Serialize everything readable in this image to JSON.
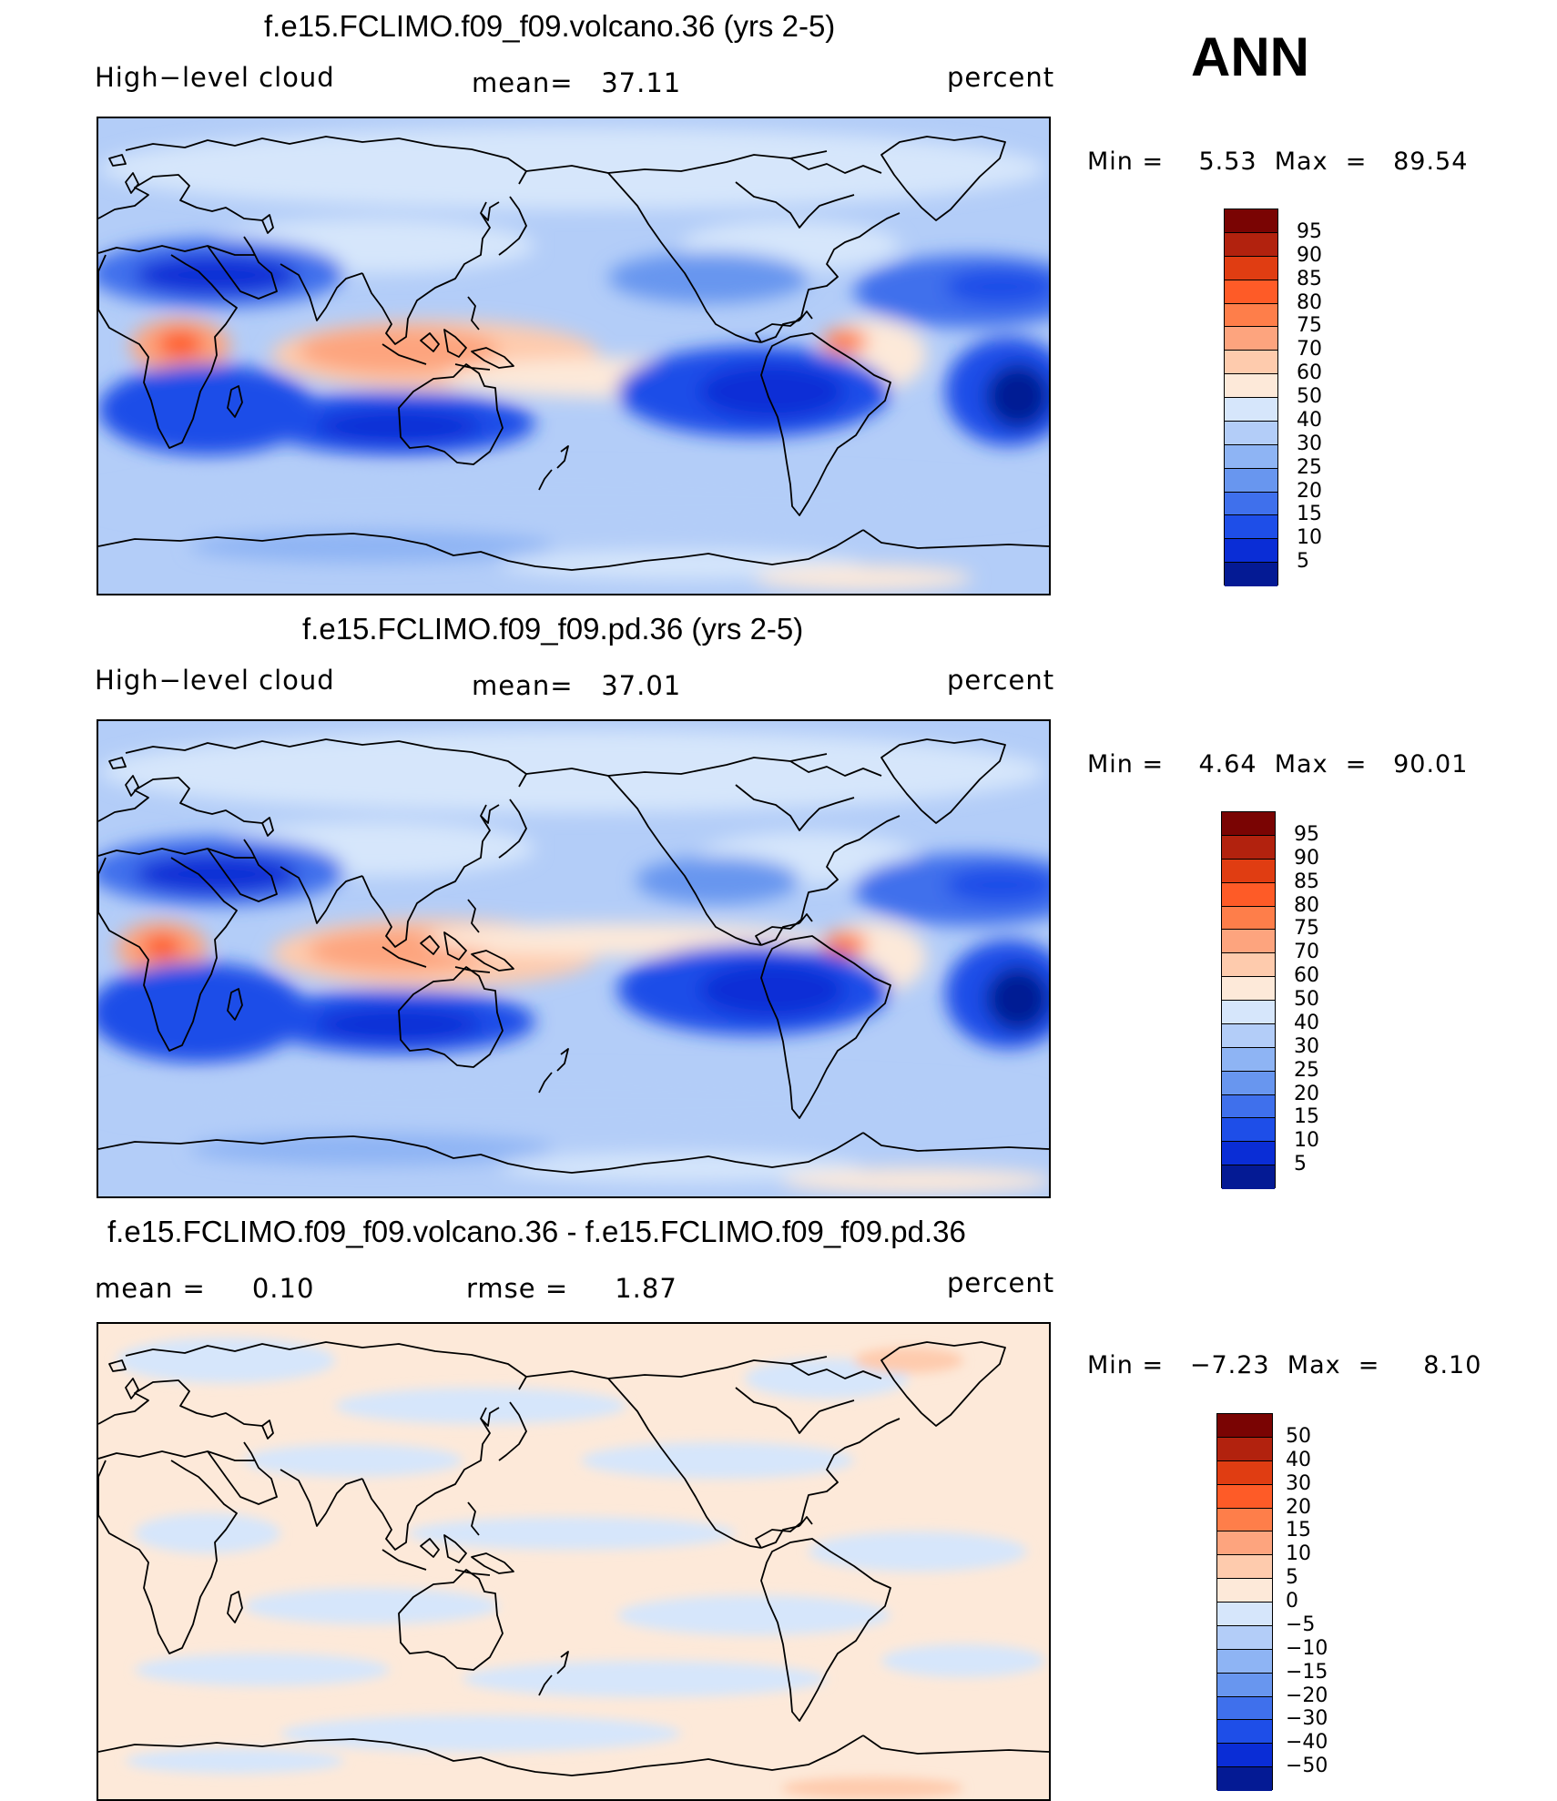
{
  "season": "ANN",
  "colors": {
    "abs_scale": [
      "#7a0403",
      "#b2220e",
      "#e03d12",
      "#fe5b27",
      "#fe7e4a",
      "#fda47e",
      "#fecbad",
      "#fde9d9",
      "#d6e6fb",
      "#b3cdf8",
      "#8eb4f4",
      "#6896ef",
      "#3f70ec",
      "#1e4ee8",
      "#0a2dd6",
      "#041a94"
    ],
    "diff_scale": [
      "#7a0403",
      "#b2220e",
      "#e03d12",
      "#fe5b27",
      "#fe7e4a",
      "#fda47e",
      "#fecbad",
      "#fde9d9",
      "#d6e6fb",
      "#b3cdf8",
      "#8eb4f4",
      "#6896ef",
      "#3f70ec",
      "#1e4ee8",
      "#0a2dd6",
      "#041a94"
    ]
  },
  "panels": [
    {
      "title": "f.e15.FCLIMO.f09_f09.volcano.36 (yrs 2-5)",
      "left_label": "High−level cloud",
      "mean_label": "mean=   37.11",
      "units": "percent",
      "minmax": "Min =    5.53  Max  =   89.54",
      "colorbar_labels": [
        "95",
        "90",
        "85",
        "80",
        "75",
        "70",
        "60",
        "50",
        "40",
        "30",
        "25",
        "20",
        "15",
        "10",
        "5"
      ]
    },
    {
      "title": "f.e15.FCLIMO.f09_f09.pd.36 (yrs 2-5)",
      "left_label": "High−level cloud",
      "mean_label": "mean=   37.01",
      "units": "percent",
      "minmax": "Min =    4.64  Max  =   90.01",
      "colorbar_labels": [
        "95",
        "90",
        "85",
        "80",
        "75",
        "70",
        "60",
        "50",
        "40",
        "30",
        "25",
        "20",
        "15",
        "10",
        "5"
      ]
    },
    {
      "title": "f.e15.FCLIMO.f09_f09.volcano.36 - f.e15.FCLIMO.f09_f09.pd.36",
      "left_label": "mean =     0.10",
      "mean_label": "rmse =     1.87",
      "units": "percent",
      "minmax": "Min =   −7.23  Max  =     8.10",
      "colorbar_labels": [
        "50",
        "40",
        "30",
        "20",
        "15",
        "10",
        "5",
        "0",
        "−5",
        "−10",
        "−15",
        "−20",
        "−30",
        "−40",
        "−50"
      ]
    }
  ]
}
